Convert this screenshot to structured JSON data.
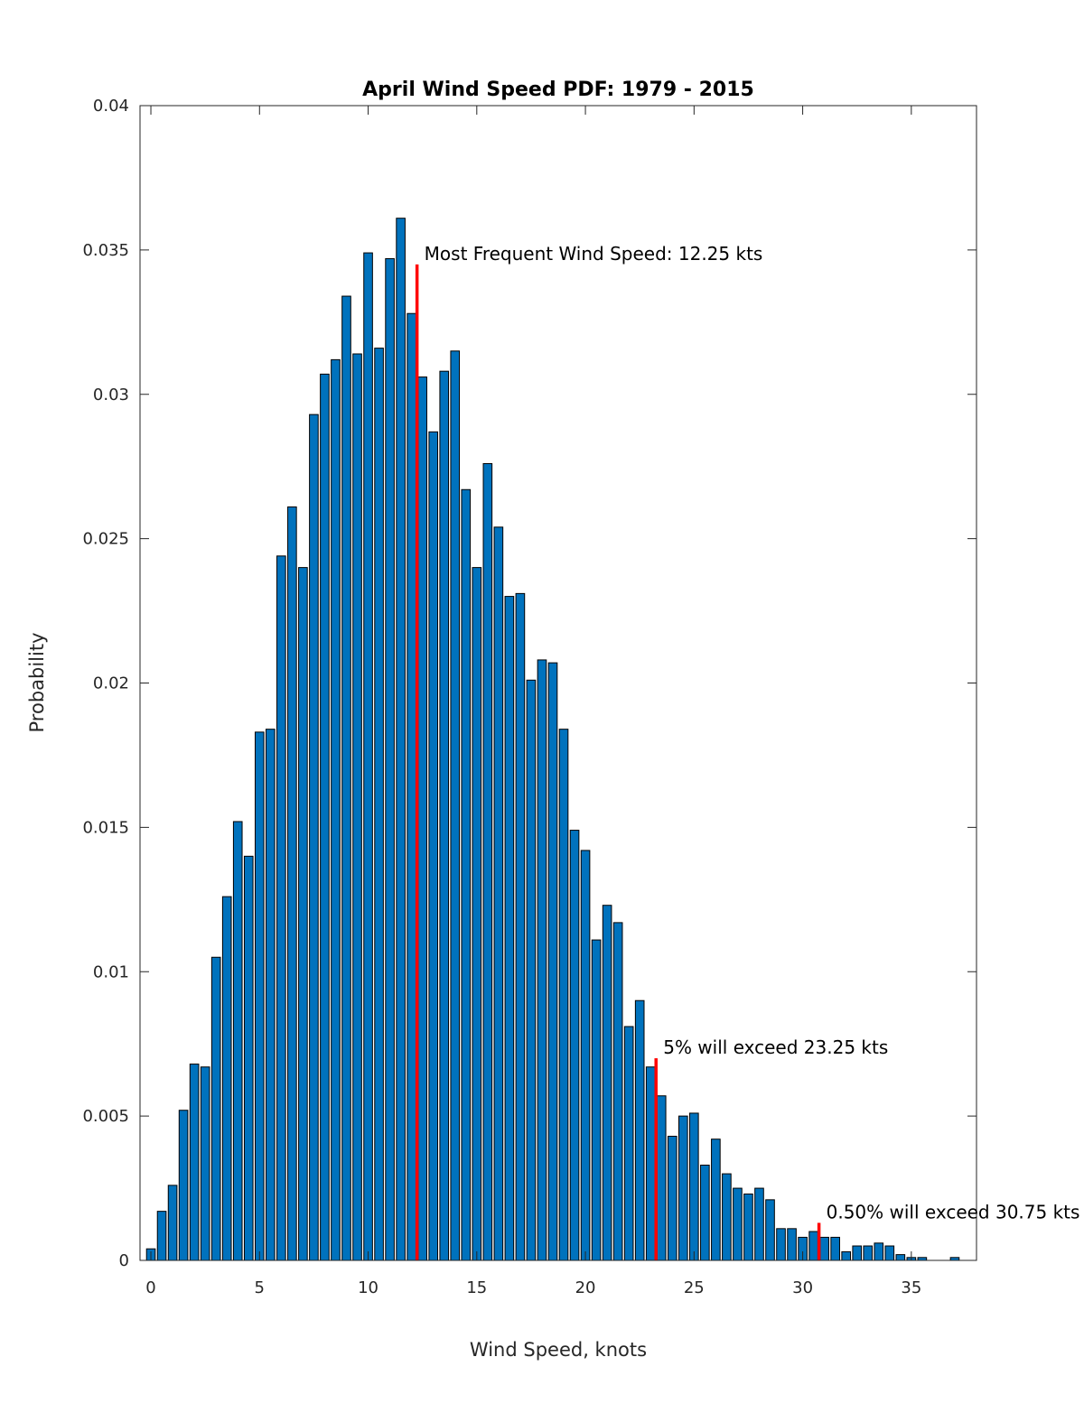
{
  "chart_data": {
    "type": "bar",
    "title": "April Wind Speed PDF: 1979 - 2015",
    "xlabel": "Wind Speed, knots",
    "ylabel": "Probability",
    "xlim": [
      -0.5,
      38
    ],
    "ylim": [
      0,
      0.04
    ],
    "x_ticks": [
      0,
      5,
      10,
      15,
      20,
      25,
      30,
      35
    ],
    "x_tick_labels": [
      "0",
      "5",
      "10",
      "15",
      "20",
      "25",
      "30",
      "35"
    ],
    "y_ticks": [
      0,
      0.005,
      0.01,
      0.015,
      0.02,
      0.025,
      0.03,
      0.035,
      0.04
    ],
    "y_tick_labels": [
      "0",
      "0.005",
      "0.01",
      "0.015",
      "0.02",
      "0.025",
      "0.03",
      "0.035",
      "0.04"
    ],
    "bar_width": 0.4,
    "grid": false,
    "bar_color": "#0072BD",
    "bar_edge_color": "#000000",
    "x": [
      0,
      0.5,
      1,
      1.5,
      2,
      2.5,
      3,
      3.5,
      4,
      4.5,
      5,
      5.5,
      6,
      6.5,
      7,
      7.5,
      8,
      8.5,
      9,
      9.5,
      10,
      10.5,
      11,
      11.5,
      12,
      12.5,
      13,
      13.5,
      14,
      14.5,
      15,
      15.5,
      16,
      16.5,
      17,
      17.5,
      18,
      18.5,
      19,
      19.5,
      20,
      20.5,
      21,
      21.5,
      22,
      22.5,
      23,
      23.5,
      24,
      24.5,
      25,
      25.5,
      26,
      26.5,
      27,
      27.5,
      28,
      28.5,
      29,
      29.5,
      30,
      30.5,
      31,
      31.5,
      32,
      32.5,
      33,
      33.5,
      34,
      34.5,
      35,
      35.5,
      36,
      36.5,
      37
    ],
    "values": [
      0.0004,
      0.0017,
      0.0026,
      0.0052,
      0.0068,
      0.0067,
      0.0105,
      0.0126,
      0.0152,
      0.014,
      0.0183,
      0.0184,
      0.0244,
      0.0261,
      0.024,
      0.0293,
      0.0307,
      0.0312,
      0.0334,
      0.0314,
      0.0349,
      0.0316,
      0.0347,
      0.0361,
      0.0328,
      0.0306,
      0.0287,
      0.0308,
      0.0315,
      0.0267,
      0.024,
      0.0276,
      0.0254,
      0.023,
      0.0231,
      0.0201,
      0.0208,
      0.0207,
      0.0184,
      0.0149,
      0.0142,
      0.0111,
      0.0123,
      0.0117,
      0.0081,
      0.009,
      0.0067,
      0.0057,
      0.0043,
      0.005,
      0.0051,
      0.0033,
      0.0042,
      0.003,
      0.0025,
      0.0023,
      0.0025,
      0.0021,
      0.0011,
      0.0011,
      0.0008,
      0.001,
      0.0008,
      0.0008,
      0.0003,
      0.0005,
      0.0005,
      0.0006,
      0.0005,
      0.0002,
      0.0001,
      0.0001,
      0,
      0,
      0.0001
    ],
    "markers": [
      {
        "x": 12.25,
        "y_top": 0.0345,
        "color": "#FF0000",
        "label": "Most Frequent Wind Speed: 12.25 kts"
      },
      {
        "x": 23.25,
        "y_top": 0.007,
        "color": "#FF0000",
        "label": "5% will exceed 23.25 kts"
      },
      {
        "x": 30.75,
        "y_top": 0.0013,
        "color": "#FF0000",
        "label": "0.50% will exceed 30.75 kts"
      }
    ]
  }
}
